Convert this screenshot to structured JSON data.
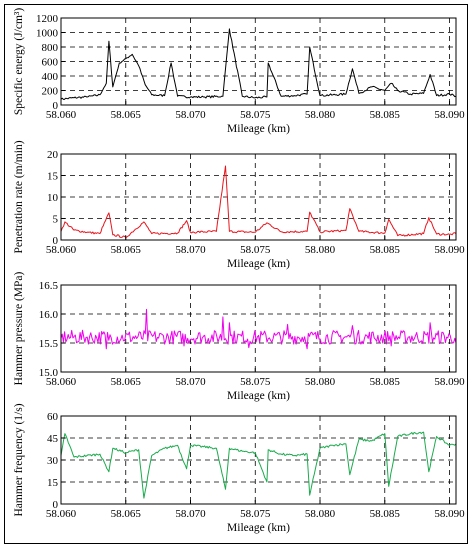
{
  "chart_data": [
    {
      "type": "line",
      "ylabel": "Specific energy (J/cm³)",
      "xlabel": "Mileage (km)",
      "xlim": [
        58.06,
        58.0905
      ],
      "ylim": [
        0,
        1200
      ],
      "xticks": [
        "58.060",
        "58.065",
        "58.070",
        "58.075",
        "58.080",
        "58.085",
        "58.090"
      ],
      "yticks": [
        "0",
        "200",
        "400",
        "600",
        "800",
        "1000",
        "1200"
      ],
      "grid": "dashed",
      "color": "#000000",
      "series": [
        {
          "x": [
            58.06,
            58.061,
            58.062,
            58.063,
            58.0635,
            58.0637,
            58.064,
            58.0645,
            58.065,
            58.0655,
            58.066,
            58.0665,
            58.067,
            58.068,
            58.0685,
            58.069,
            58.07,
            58.071,
            58.0725,
            58.073,
            58.074,
            58.075,
            58.0759,
            58.076,
            58.077,
            58.078,
            58.079,
            58.0792,
            58.08,
            58.081,
            58.082,
            58.0825,
            58.083,
            58.084,
            58.085,
            58.0855,
            58.086,
            58.087,
            58.088,
            58.0885,
            58.089,
            58.09,
            58.0905
          ],
          "y": [
            80,
            100,
            110,
            140,
            300,
            880,
            250,
            580,
            640,
            700,
            540,
            280,
            140,
            130,
            580,
            120,
            110,
            110,
            120,
            1050,
            120,
            100,
            110,
            580,
            120,
            130,
            150,
            800,
            130,
            140,
            150,
            500,
            160,
            250,
            200,
            300,
            200,
            150,
            160,
            420,
            130,
            150,
            120
          ]
        }
      ]
    },
    {
      "type": "line",
      "ylabel": "Penetration rate (m/min)",
      "xlabel": "Mileage (km)",
      "xlim": [
        58.06,
        58.0905
      ],
      "ylim": [
        0,
        20
      ],
      "xticks": [
        "58.060",
        "58.065",
        "58.070",
        "58.075",
        "58.080",
        "58.085",
        "58.090"
      ],
      "yticks": [
        "0",
        "5",
        "10",
        "15",
        "20"
      ],
      "grid": "dashed",
      "color": "#e8141c",
      "series": [
        {
          "x": [
            58.06,
            58.0603,
            58.061,
            58.062,
            58.063,
            58.0637,
            58.064,
            58.065,
            58.0664,
            58.067,
            58.069,
            58.0697,
            58.07,
            58.072,
            58.0727,
            58.073,
            58.075,
            58.0759,
            58.077,
            58.079,
            58.0792,
            58.08,
            58.082,
            58.0823,
            58.083,
            58.085,
            58.0853,
            58.086,
            58.088,
            58.0884,
            58.089,
            58.09,
            58.0905
          ],
          "y": [
            2.0,
            4.2,
            2.3,
            1.8,
            1.5,
            6.3,
            1.2,
            0.6,
            4.2,
            1.5,
            1.6,
            4.5,
            1.8,
            2.0,
            17.2,
            2.0,
            1.8,
            4.0,
            1.9,
            2.0,
            6.5,
            1.9,
            2.2,
            7.3,
            2.0,
            1.6,
            4.8,
            1.0,
            1.5,
            5.2,
            1.4,
            1.3,
            1.5
          ]
        }
      ]
    },
    {
      "type": "line",
      "ylabel": "Hammer pressure (MPa)",
      "xlabel": "Mileage (km)",
      "xlim": [
        58.06,
        58.0905
      ],
      "ylim": [
        15.0,
        16.5
      ],
      "xticks": [
        "58.060",
        "58.065",
        "58.070",
        "58.075",
        "58.080",
        "58.085",
        "58.090"
      ],
      "yticks": [
        "15.0",
        "15.5",
        "16.0",
        "16.5"
      ],
      "grid": "dashed",
      "color": "#ee00ee",
      "series": [
        {
          "x": [
            58.06,
            58.0635,
            58.0666,
            58.0695,
            58.0725,
            58.073,
            58.0745,
            58.0775,
            58.079,
            58.0825,
            58.0855,
            58.0885,
            58.0905
          ],
          "y": [
            15.58,
            15.4,
            16.08,
            15.45,
            15.95,
            15.85,
            15.42,
            15.82,
            15.4,
            15.8,
            15.45,
            15.85,
            15.5
          ],
          "band": [
            15.48,
            15.72
          ]
        }
      ]
    },
    {
      "type": "line",
      "ylabel": "Hammer frequency (1/s)",
      "xlabel": "Mileage (km)",
      "xlim": [
        58.06,
        58.0905
      ],
      "ylim": [
        0,
        60
      ],
      "xticks": [
        "58.060",
        "58.065",
        "58.070",
        "58.075",
        "58.080",
        "58.085",
        "58.090"
      ],
      "yticks": [
        "0",
        "15",
        "30",
        "45",
        "60"
      ],
      "grid": "dashed",
      "color": "#1aab4c",
      "series": [
        {
          "x": [
            58.06,
            58.0603,
            58.061,
            58.062,
            58.063,
            58.0637,
            58.064,
            58.065,
            58.066,
            58.0664,
            58.067,
            58.068,
            58.069,
            58.0697,
            58.07,
            58.071,
            58.072,
            58.0727,
            58.073,
            58.074,
            58.075,
            58.0759,
            58.076,
            58.077,
            58.078,
            58.079,
            58.0792,
            58.08,
            58.081,
            58.082,
            58.0823,
            58.083,
            58.084,
            58.085,
            58.0853,
            58.086,
            58.087,
            58.088,
            58.0884,
            58.089,
            58.09,
            58.0905
          ],
          "y": [
            33,
            48,
            32,
            33,
            34,
            22,
            38,
            35,
            37,
            4,
            33,
            38,
            40,
            24,
            40,
            39,
            38,
            10,
            38,
            36,
            35,
            15,
            37,
            34,
            33,
            34,
            6,
            38,
            40,
            41,
            20,
            44,
            43,
            48,
            12,
            46,
            48,
            49,
            22,
            46,
            40,
            41
          ]
        }
      ]
    }
  ]
}
